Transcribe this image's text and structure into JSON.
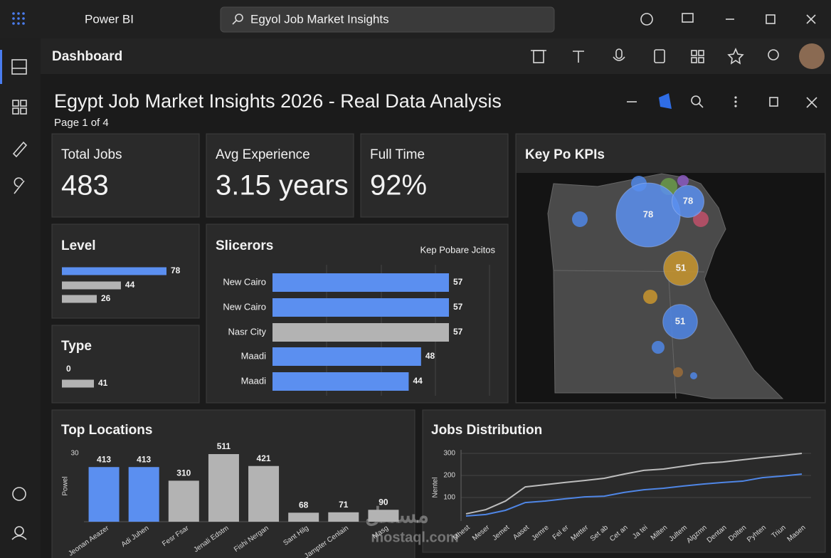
{
  "app": {
    "name": "Power BI",
    "search": "Egyol Job Market Insights"
  },
  "header": {
    "title": "Dashboard"
  },
  "report": {
    "title": "Egypt Job Market Insights 2026 - Real Data Analysis",
    "page": "Page 1 of 4"
  },
  "kpis": [
    {
      "label": "Total Jobs",
      "value": "483"
    },
    {
      "label": "Avg Experience",
      "value": "3.15 years"
    },
    {
      "label": "Full Time",
      "value": "92%"
    }
  ],
  "watermark": {
    "arabic": "مستقل",
    "latin": "mostaql.com"
  },
  "chart_data": [
    {
      "type": "bar",
      "orientation": "horizontal",
      "title": "Level",
      "values": [
        78,
        44,
        26
      ],
      "colors": [
        "#5b8ff0",
        "#b3b3b3",
        "#b3b3b3"
      ]
    },
    {
      "type": "bar",
      "orientation": "horizontal",
      "title": "Type",
      "values": [
        0,
        41
      ],
      "colors": [
        "#5b8ff0",
        "#b3b3b3"
      ]
    },
    {
      "type": "bar",
      "orientation": "horizontal",
      "title": "Slicerors",
      "subtitle": "Kep Pobare Jcitos",
      "categories": [
        "New Cairo",
        "New Cairo",
        "Nasr City",
        "Maadi",
        "Maadi"
      ],
      "values": [
        57,
        57,
        57,
        48,
        44
      ],
      "colors": [
        "#5b8ff0",
        "#5b8ff0",
        "#b3b3b3",
        "#5b8ff0",
        "#5b8ff0"
      ]
    },
    {
      "type": "bubble",
      "title": "Key Po KPIs",
      "values": [
        78,
        78,
        51,
        51
      ],
      "colors": [
        "#5b8ff0",
        "#5b8ff0",
        "#c9962e",
        "#4f86e6"
      ]
    },
    {
      "type": "bar",
      "orientation": "vertical",
      "title": "Top Locations",
      "ylabel": "Powel",
      "y_top_label": "30",
      "categories": [
        "Jeonan Aeazer",
        "Adi Juhen",
        "Fesr Fsar",
        "Jenali Edstm",
        "Fishi Nergan",
        "Sant Hilg",
        "Jampter Cenlain",
        "Masg"
      ],
      "values": [
        413,
        413,
        310,
        511,
        421,
        68,
        71,
        90
      ],
      "colors": [
        "#5b8ff0",
        "#5b8ff0",
        "#b3b3b3",
        "#b3b3b3",
        "#b3b3b3",
        "#b3b3b3",
        "#b3b3b3",
        "#b3b3b3"
      ]
    },
    {
      "type": "line",
      "title": "Jobs Distribution",
      "ylabel": "Nentel",
      "ylim": [
        0,
        300
      ],
      "yticks": [
        100,
        200,
        300
      ],
      "grid": true,
      "categories": [
        "Mhest",
        "Meser",
        "Jemet",
        "Aaset",
        "Jemre",
        "Fel er",
        "Metter",
        "Set ab",
        "Cet an",
        "Ja tei",
        "Milten",
        "Jultem",
        "Algzmn",
        "Dentan",
        "Dolten",
        "Pyhten",
        "Triun",
        "Masen"
      ],
      "series": [
        {
          "color": "#bdbdbd",
          "values": [
            26,
            45,
            84,
            148,
            158,
            168,
            177,
            187,
            206,
            223,
            229,
            242,
            255,
            261,
            271,
            281,
            290,
            300
          ]
        },
        {
          "color": "#4f86e6",
          "values": [
            16,
            23,
            42,
            77,
            84,
            94,
            103,
            106,
            123,
            135,
            142,
            152,
            161,
            168,
            174,
            190,
            197,
            206
          ]
        }
      ]
    }
  ]
}
